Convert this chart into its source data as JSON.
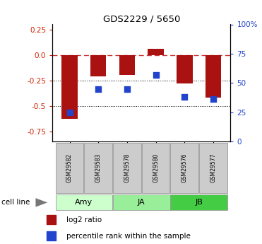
{
  "title": "GDS2229 / 5650",
  "samples": [
    "GSM29582",
    "GSM29583",
    "GSM29578",
    "GSM29580",
    "GSM29576",
    "GSM29577"
  ],
  "log2_ratio": [
    -0.63,
    -0.21,
    -0.2,
    0.06,
    -0.28,
    -0.42
  ],
  "percentile_rank": [
    25,
    45,
    45,
    57,
    38,
    36
  ],
  "groups": [
    {
      "label": "Amy",
      "indices": [
        0,
        1
      ],
      "color": "#ccffcc"
    },
    {
      "label": "JA",
      "indices": [
        2,
        3
      ],
      "color": "#99ee99"
    },
    {
      "label": "JB",
      "indices": [
        4,
        5
      ],
      "color": "#44cc44"
    }
  ],
  "ylim_left": [
    -0.85,
    0.3
  ],
  "ylim_right": [
    0,
    100
  ],
  "yticks_left": [
    0.25,
    0.0,
    -0.25,
    -0.5,
    -0.75
  ],
  "yticks_right": [
    100,
    75,
    50,
    25,
    0
  ],
  "ytick_right_labels": [
    "100%",
    "75",
    "50",
    "25",
    "0"
  ],
  "bar_color": "#aa1111",
  "dot_color": "#2244cc",
  "ref_line_color": "#cc3333",
  "dot_line_color": "#0000aa",
  "grid_color": "#000000",
  "bar_width": 0.55,
  "dot_size": 40,
  "left_label_color": "#cc2200",
  "right_label_color": "#2244cc",
  "legend_red_label": "log2 ratio",
  "legend_blue_label": "percentile rank within the sample",
  "cell_line_label": "cell line",
  "sample_box_color": "#cccccc",
  "sample_box_edge": "#999999",
  "tick_fontsize": 7.5,
  "title_fontsize": 9.5,
  "sample_fontsize": 5.5,
  "cellline_fontsize": 8,
  "legend_fontsize": 7.5
}
